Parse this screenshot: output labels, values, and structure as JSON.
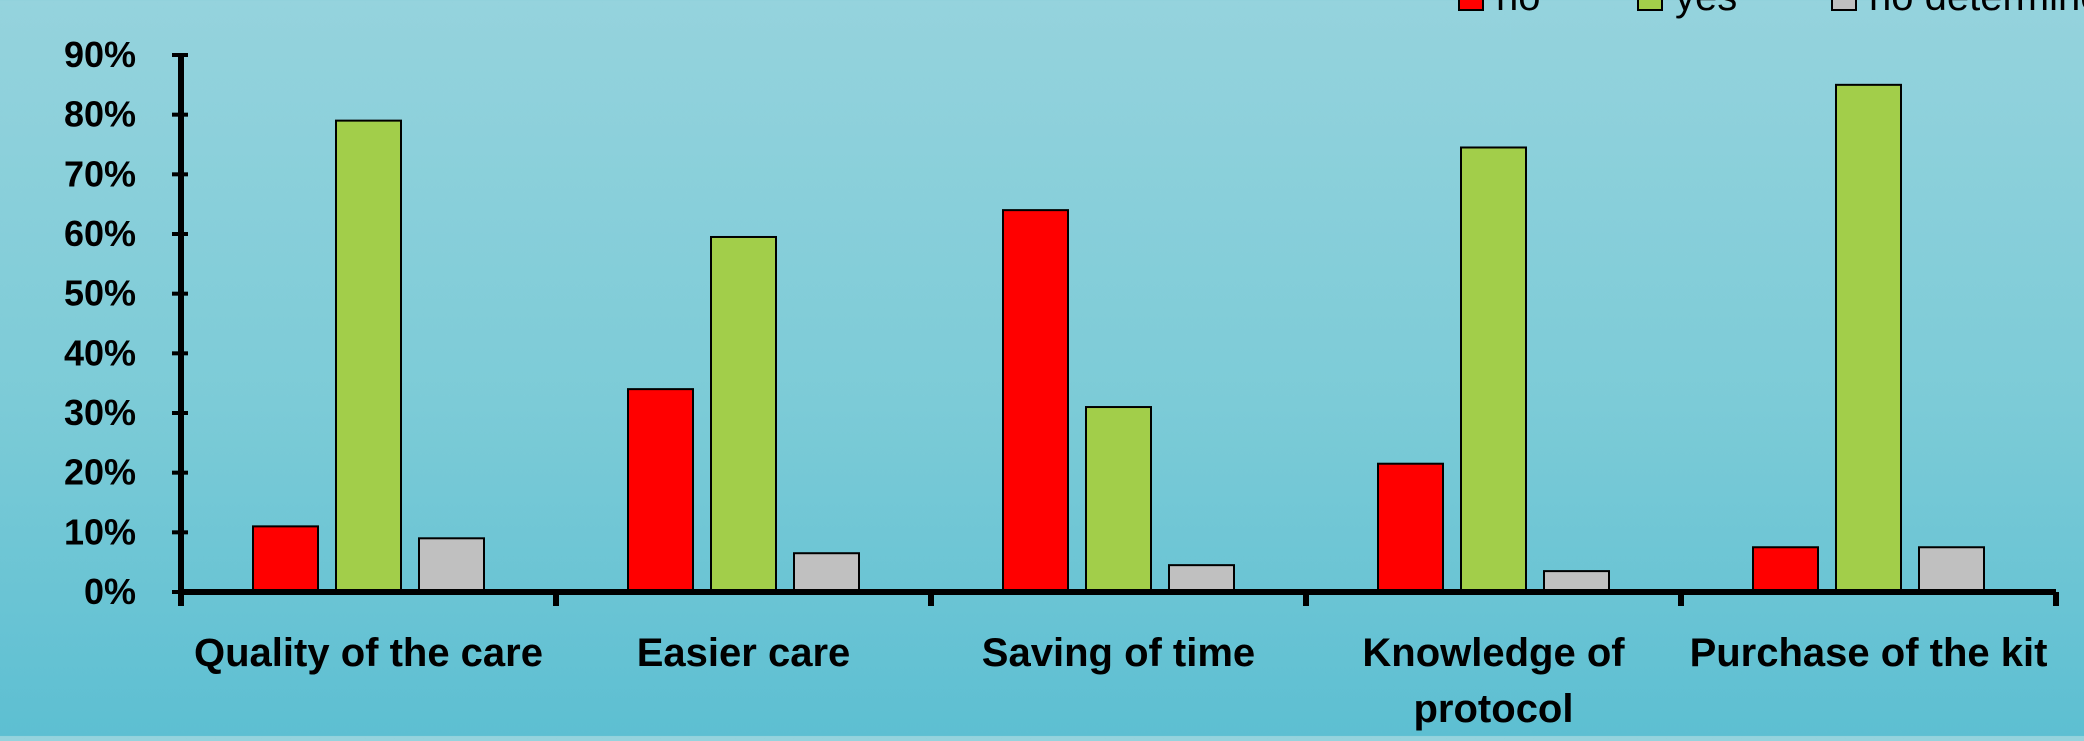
{
  "chart_data": {
    "type": "bar",
    "categories": [
      [
        "Quality of the care"
      ],
      [
        "Easier care"
      ],
      [
        "Saving of time"
      ],
      [
        "Knowledge of",
        "protocol"
      ],
      [
        "Purchase of the kit"
      ]
    ],
    "series": [
      {
        "name": "no",
        "color": "#ff0000",
        "values": [
          11,
          34,
          64,
          21.5,
          7.5
        ]
      },
      {
        "name": "yes",
        "color": "#a2ce4a",
        "values": [
          79,
          59.5,
          31,
          74.5,
          85
        ]
      },
      {
        "name": "no determine",
        "color": "#c0c0c0",
        "values": [
          9,
          6.5,
          4.5,
          3.5,
          7.5
        ]
      }
    ],
    "y_ticks": [
      "0%",
      "10%",
      "20%",
      "30%",
      "40%",
      "50%",
      "60%",
      "70%",
      "80%",
      "90%"
    ],
    "ylim": [
      0,
      90
    ],
    "y_unit": "%",
    "title": "",
    "xlabel": "",
    "ylabel": "",
    "grid": false,
    "legend_position": "top-right"
  }
}
